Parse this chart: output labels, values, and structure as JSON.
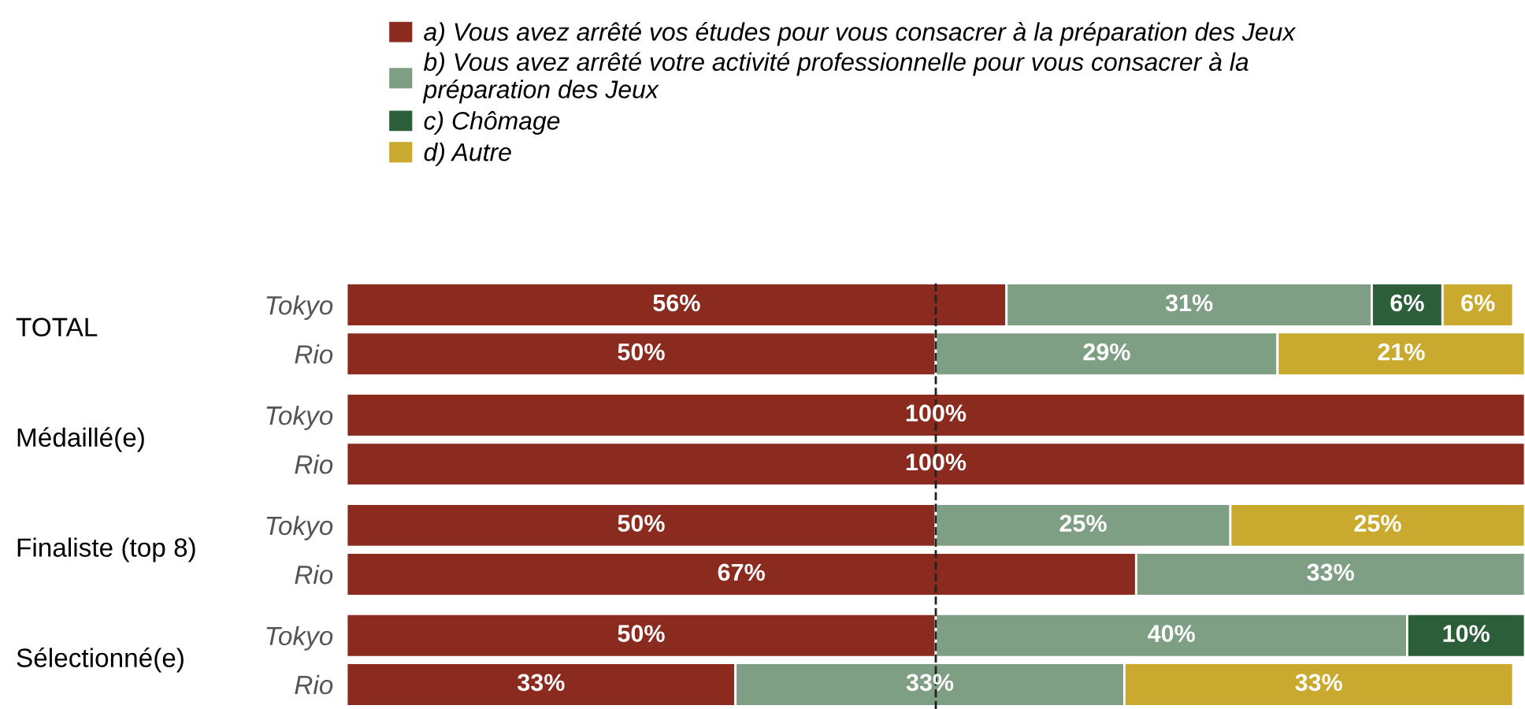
{
  "chart_data": {
    "type": "bar",
    "orientation": "horizontal",
    "stacked": true,
    "categories": [
      "Tokyo",
      "Rio",
      "Tokyo",
      "Rio",
      "Tokyo",
      "Rio",
      "Tokyo",
      "Rio"
    ],
    "series": [
      {
        "name": "a) Vous avez arrêté vos études pour vous consacrer à la préparation des Jeux",
        "color": "#8b2b1f",
        "values": [
          56,
          50,
          100,
          100,
          50,
          67,
          50,
          33
        ],
        "value_labels": [
          "56%",
          "50%",
          "100%",
          "100%",
          "50%",
          "67%",
          "50%",
          "33%"
        ]
      },
      {
        "name": "b) Vous avez arrêté votre activité professionnelle pour vous consacrer à la\npréparation des Jeux",
        "color": "#7f9f84",
        "values": [
          31,
          29,
          null,
          null,
          25,
          33,
          40,
          33
        ],
        "value_labels": [
          "31%",
          "29%",
          null,
          null,
          "25%",
          "33%",
          "40%",
          "33%"
        ]
      },
      {
        "name": "c) Chômage",
        "color": "#2c5e3a",
        "values": [
          6,
          null,
          null,
          null,
          null,
          null,
          10,
          null
        ],
        "value_labels": [
          "6%",
          null,
          null,
          null,
          null,
          null,
          "10%",
          null
        ]
      },
      {
        "name": "d) Autre",
        "color": "#c9a92e",
        "values": [
          6,
          21,
          null,
          null,
          25,
          null,
          null,
          33
        ],
        "value_labels": [
          "6%",
          "21%",
          null,
          null,
          "25%",
          null,
          null,
          "33%"
        ]
      }
    ],
    "annotations": [
      "TOTAL",
      "Médaillé(e)",
      "Finaliste (top 8)",
      "Sélectionné(e)"
    ],
    "xlim": [
      0,
      100
    ],
    "ref_lines": [
      {
        "axis": "x",
        "value": 50,
        "line_style": "dashed",
        "color": "#222222"
      }
    ],
    "tick_labels": "y",
    "grid": false,
    "legend": "top"
  }
}
